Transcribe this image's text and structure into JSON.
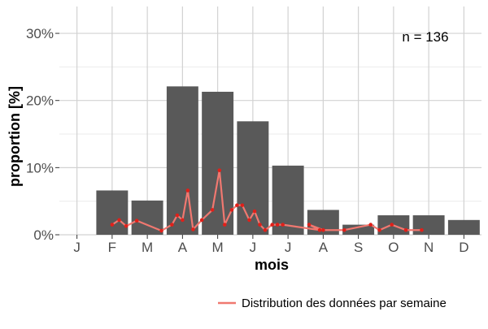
{
  "chart_data": {
    "type": "bar",
    "categories": [
      "J",
      "F",
      "M",
      "A",
      "M",
      "J",
      "J",
      "A",
      "S",
      "O",
      "N",
      "D"
    ],
    "values": [
      0,
      6.6,
      5.1,
      22.1,
      21.3,
      16.9,
      10.3,
      3.7,
      1.5,
      2.9,
      2.9,
      2.2
    ],
    "series": [
      {
        "name": "Distribution des données par semaine",
        "x": [
          1.0,
          1.2,
          1.4,
          1.7,
          2.4,
          2.7,
          2.85,
          3.0,
          3.15,
          3.3,
          3.55,
          3.85,
          4.05,
          4.2,
          4.4,
          4.55,
          4.7,
          4.9,
          5.05,
          5.2,
          5.35,
          5.55,
          5.7,
          5.85,
          6.9,
          6.6,
          7.0,
          7.6,
          8.35,
          8.6,
          8.95,
          9.35,
          9.8
        ],
        "values": [
          1.5,
          2.2,
          1.3,
          2.1,
          0.6,
          1.5,
          2.9,
          2.2,
          6.6,
          0.8,
          2.2,
          3.7,
          9.6,
          1.5,
          3.7,
          4.4,
          4.4,
          2.2,
          3.5,
          1.5,
          0.7,
          1.5,
          1.5,
          1.5,
          0.7,
          1.5,
          0.7,
          0.7,
          1.5,
          0.7,
          1.5,
          0.7,
          0.7
        ],
        "color": "#f07870"
      }
    ],
    "xlabel": "mois",
    "ylabel": "proportion [%]",
    "ylim": [
      0,
      34
    ],
    "yticks": [
      0,
      10,
      20,
      30
    ],
    "ytick_labels": [
      "0%",
      "10%",
      "20%",
      "30%"
    ],
    "annotation": "n = 136",
    "legend": {
      "label": "Distribution des données par semaine",
      "position": "bottom"
    },
    "grid": true,
    "bar_color": "#595959"
  }
}
